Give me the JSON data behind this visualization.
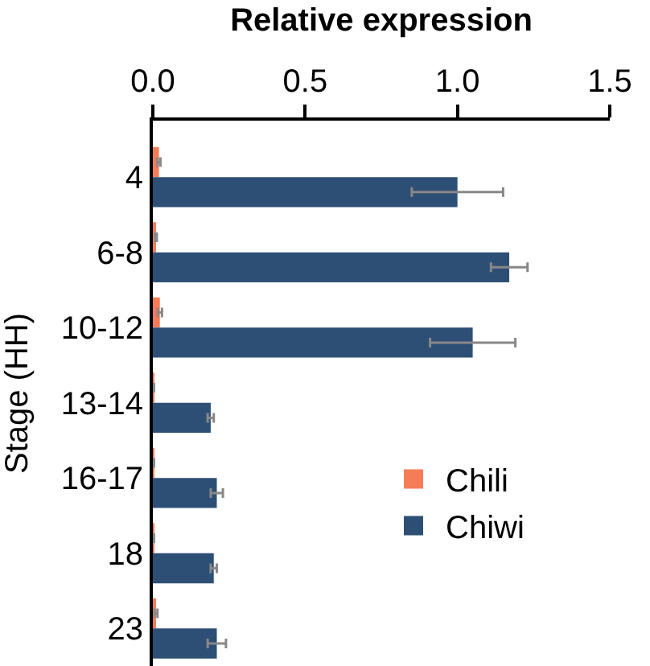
{
  "chart_data": {
    "type": "bar",
    "orientation": "horizontal",
    "xlabel": "Relative expression",
    "ylabel": "Stage (HH)",
    "categories": [
      "4",
      "6-8",
      "10-12",
      "13-14",
      "16-17",
      "18",
      "23"
    ],
    "series": [
      {
        "name": "Chili",
        "color": "#f47c56",
        "values": [
          0.02,
          0.01,
          0.023,
          0.002,
          0.002,
          0.002,
          0.01
        ],
        "errors": [
          0.005,
          0.003,
          0.007,
          0.002,
          0.002,
          0.002,
          0.005
        ]
      },
      {
        "name": "Chiwi",
        "color": "#2e4f75",
        "values": [
          1.0,
          1.17,
          1.05,
          0.19,
          0.21,
          0.2,
          0.21
        ],
        "errors": [
          0.15,
          0.06,
          0.14,
          0.01,
          0.02,
          0.01,
          0.03
        ]
      }
    ],
    "xlim": [
      0,
      1.5
    ],
    "xticks": [
      {
        "value": 0,
        "label": "0.0"
      },
      0.5,
      {
        "value": 1,
        "label": "1.0"
      },
      1.5
    ],
    "legend": "right"
  }
}
